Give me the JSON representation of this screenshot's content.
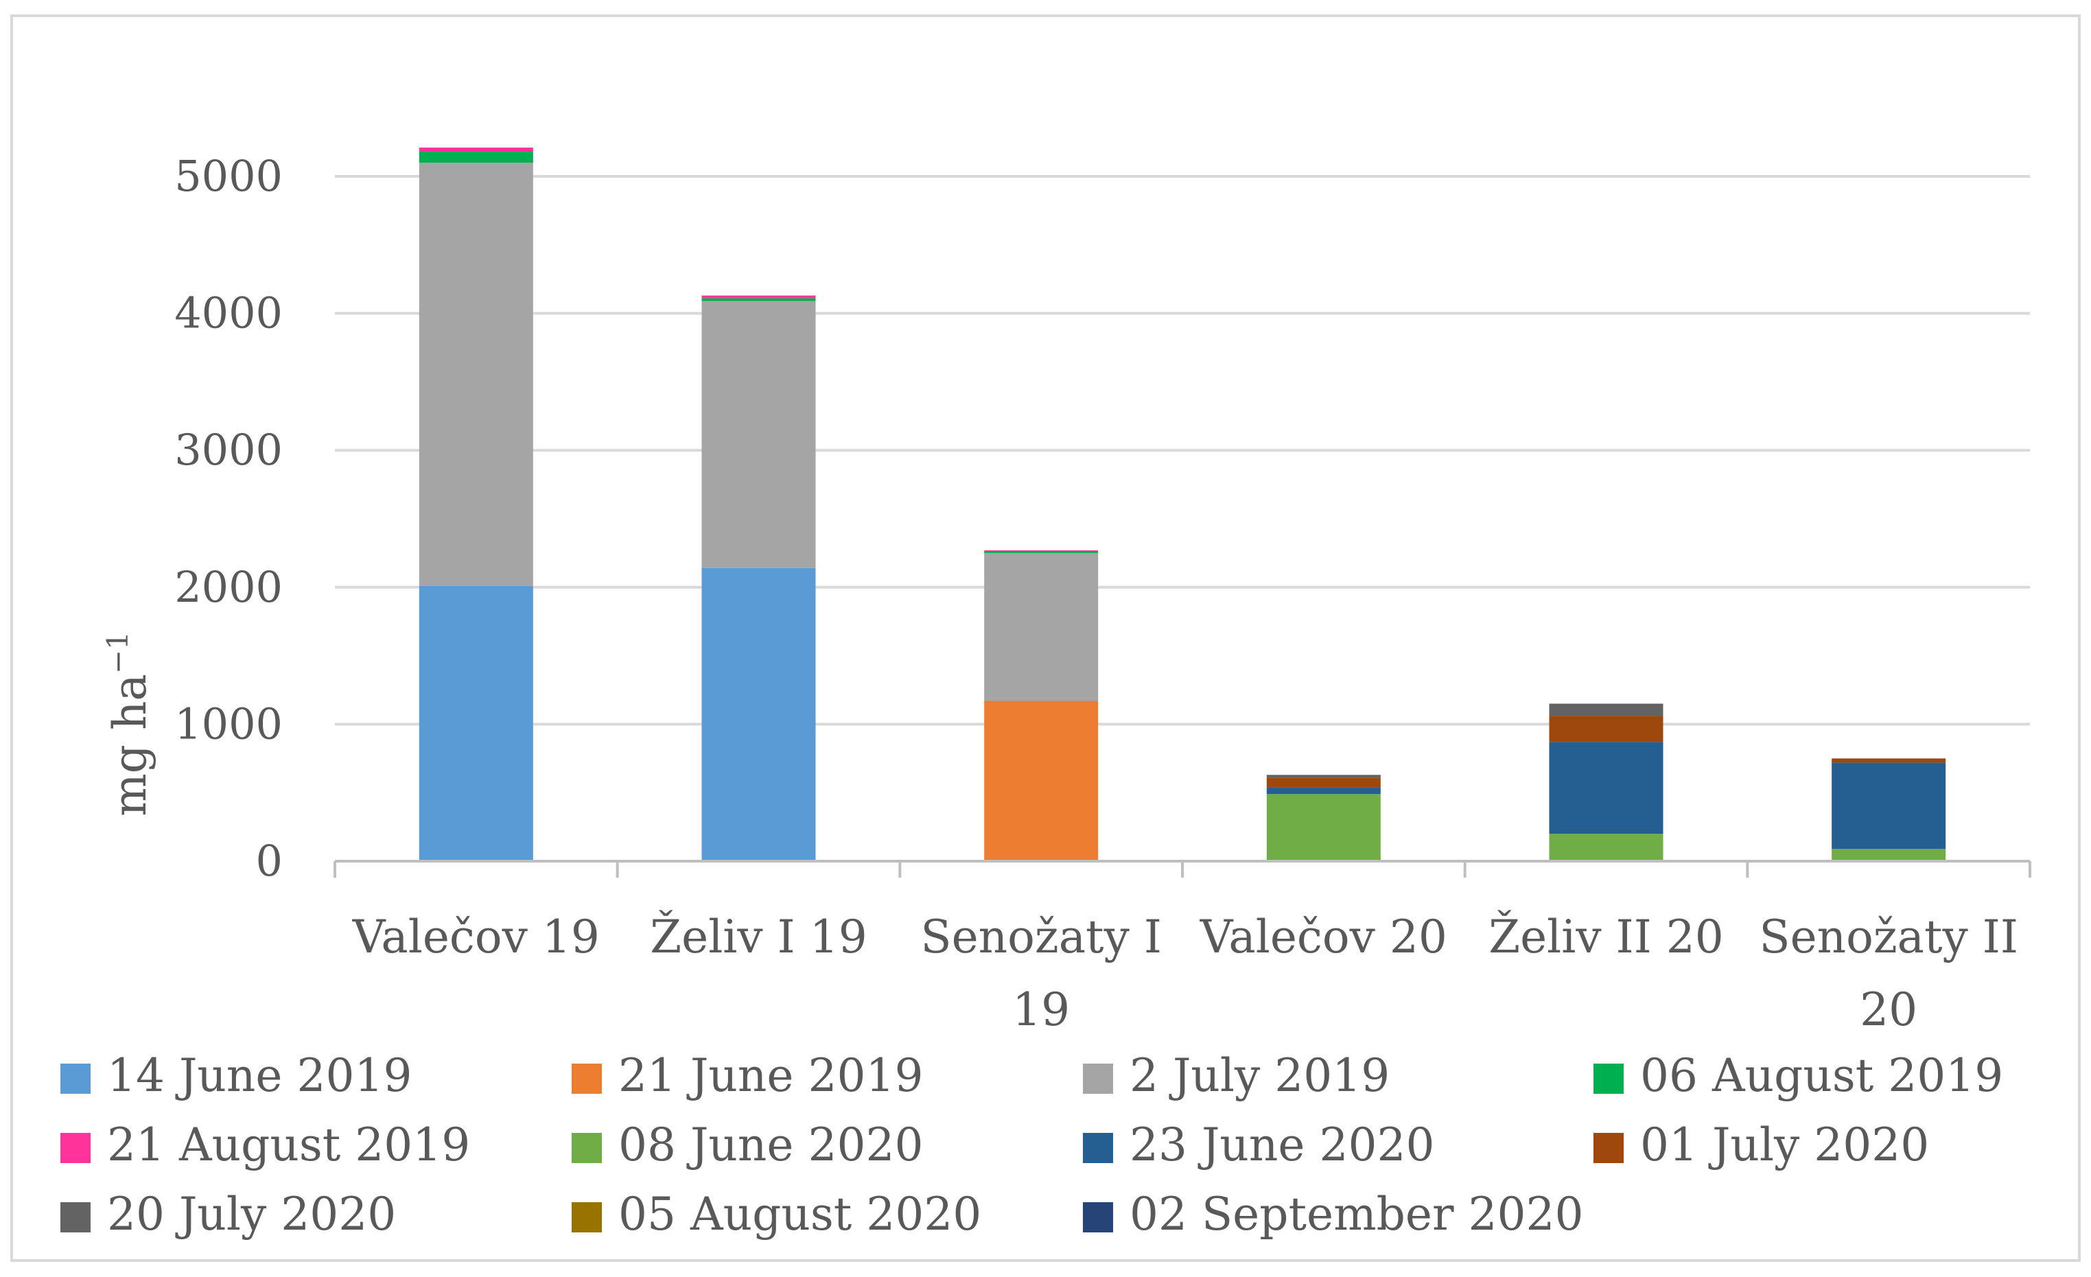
{
  "chart_data": {
    "type": "bar",
    "stacked": true,
    "title": "",
    "xlabel": "",
    "ylabel": "mg ha",
    "ylabel_superscript": "−1",
    "ylim": [
      0,
      5000
    ],
    "yticks": [
      0,
      1000,
      2000,
      3000,
      4000,
      5000
    ],
    "ytick_labels": [
      "0",
      "1000",
      "2000",
      "3000",
      "4000",
      "5000"
    ],
    "grid": true,
    "legend_position": "bottom",
    "categories": [
      [
        "Valečov 19"
      ],
      [
        "Želiv I 19"
      ],
      [
        "Senožaty I",
        "19"
      ],
      [
        "Valečov 20"
      ],
      [
        "Želiv II 20"
      ],
      [
        "Senožaty II",
        "20"
      ]
    ],
    "series": [
      {
        "name": "14 June 2019",
        "color": "#5B9BD5",
        "values": [
          2010,
          2140,
          0,
          0,
          0,
          0
        ]
      },
      {
        "name": "21 June 2019",
        "color": "#ED7D31",
        "values": [
          0,
          0,
          1170,
          0,
          0,
          0
        ]
      },
      {
        "name": "2 July 2019",
        "color": "#A5A5A5",
        "values": [
          3090,
          1950,
          1080,
          0,
          0,
          0
        ]
      },
      {
        "name": "06 August 2019",
        "color": "#00B050",
        "values": [
          80,
          20,
          15,
          0,
          0,
          0
        ]
      },
      {
        "name": "21 August 2019",
        "color": "#FF3399",
        "values": [
          30,
          20,
          5,
          0,
          0,
          0
        ]
      },
      {
        "name": "08 June 2020",
        "color": "#70AD47",
        "values": [
          0,
          0,
          0,
          490,
          200,
          90
        ]
      },
      {
        "name": "23 June 2020",
        "color": "#255E91",
        "values": [
          0,
          0,
          0,
          50,
          670,
          630
        ]
      },
      {
        "name": "01 July 2020",
        "color": "#9E480E",
        "values": [
          0,
          0,
          0,
          70,
          190,
          30
        ]
      },
      {
        "name": "20 July 2020",
        "color": "#636363",
        "values": [
          0,
          0,
          0,
          20,
          90,
          0
        ]
      },
      {
        "name": "05 August 2020",
        "color": "#997300",
        "values": [
          0,
          0,
          0,
          0,
          0,
          0
        ]
      },
      {
        "name": "02 September 2020",
        "color": "#264478",
        "values": [
          0,
          0,
          0,
          0,
          0,
          0
        ]
      }
    ]
  }
}
